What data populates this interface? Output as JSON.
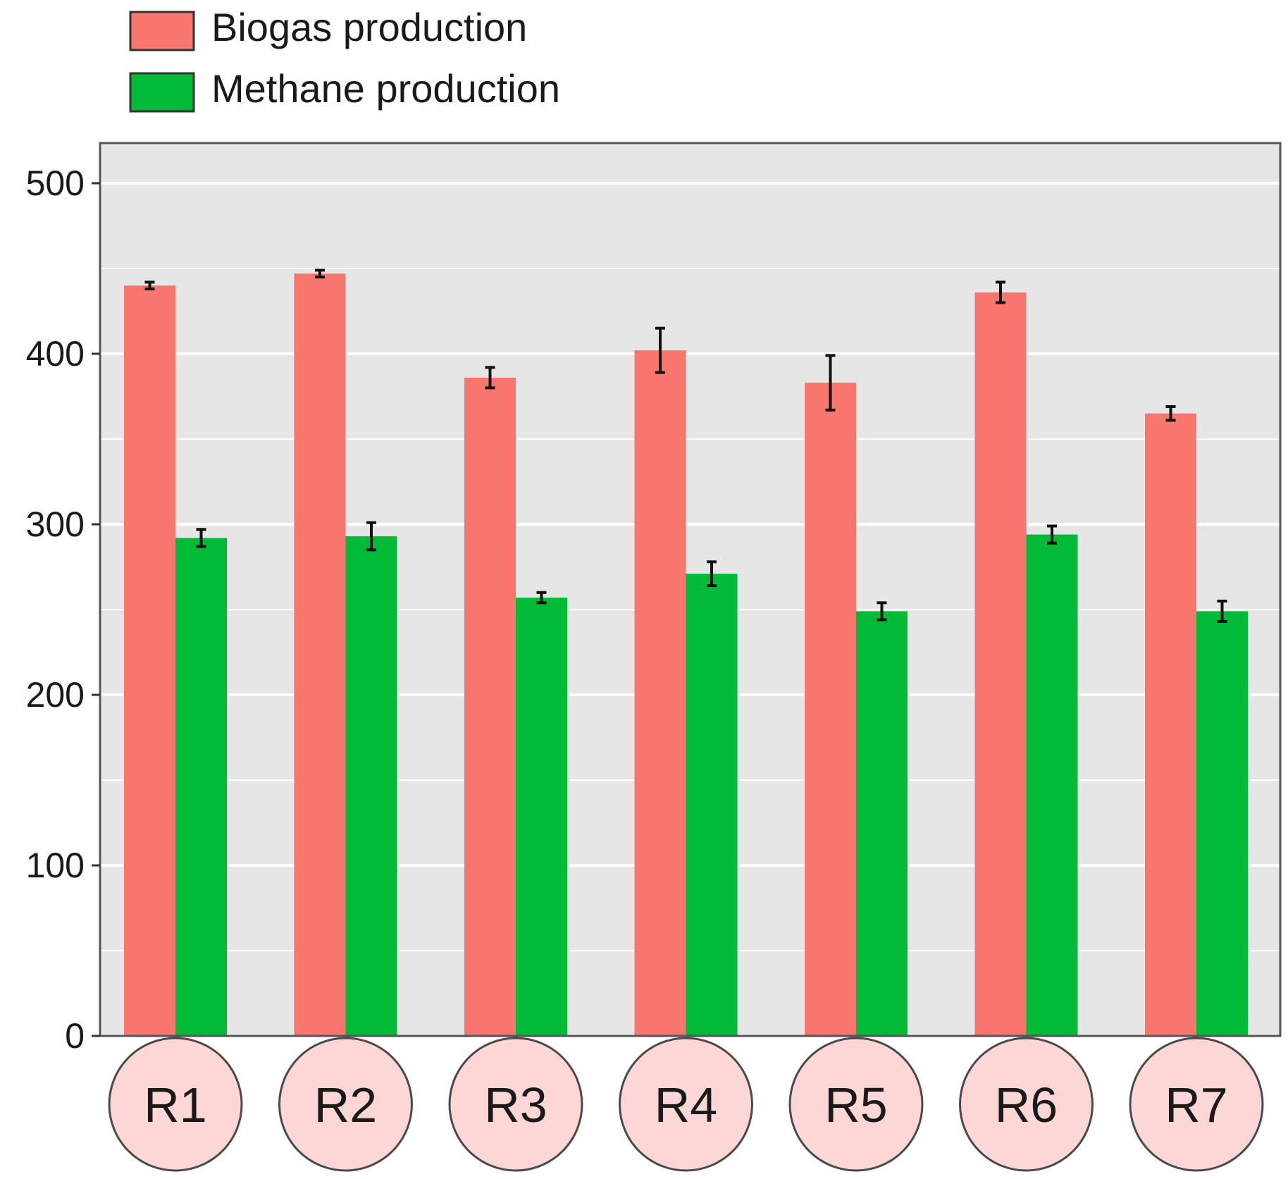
{
  "chart_data": {
    "type": "bar",
    "title": "",
    "xlabel": "",
    "ylabel": "",
    "ylim": [
      0,
      525
    ],
    "yticks": [
      0,
      100,
      200,
      300,
      400,
      500
    ],
    "grid": true,
    "legend_position": "top-left",
    "categories": [
      "R1",
      "R2",
      "R3",
      "R4",
      "R5",
      "R6",
      "R7"
    ],
    "series": [
      {
        "name": "Biogas production",
        "color": "#f8766d",
        "values": [
          440,
          447,
          386,
          402,
          383,
          436,
          365
        ],
        "errors": [
          2,
          2,
          6,
          13,
          16,
          6,
          4
        ]
      },
      {
        "name": "Methane production",
        "color": "#00ba38",
        "values": [
          292,
          293,
          257,
          271,
          249,
          294,
          249
        ],
        "errors": [
          5,
          8,
          3,
          7,
          5,
          5,
          6
        ]
      }
    ]
  }
}
